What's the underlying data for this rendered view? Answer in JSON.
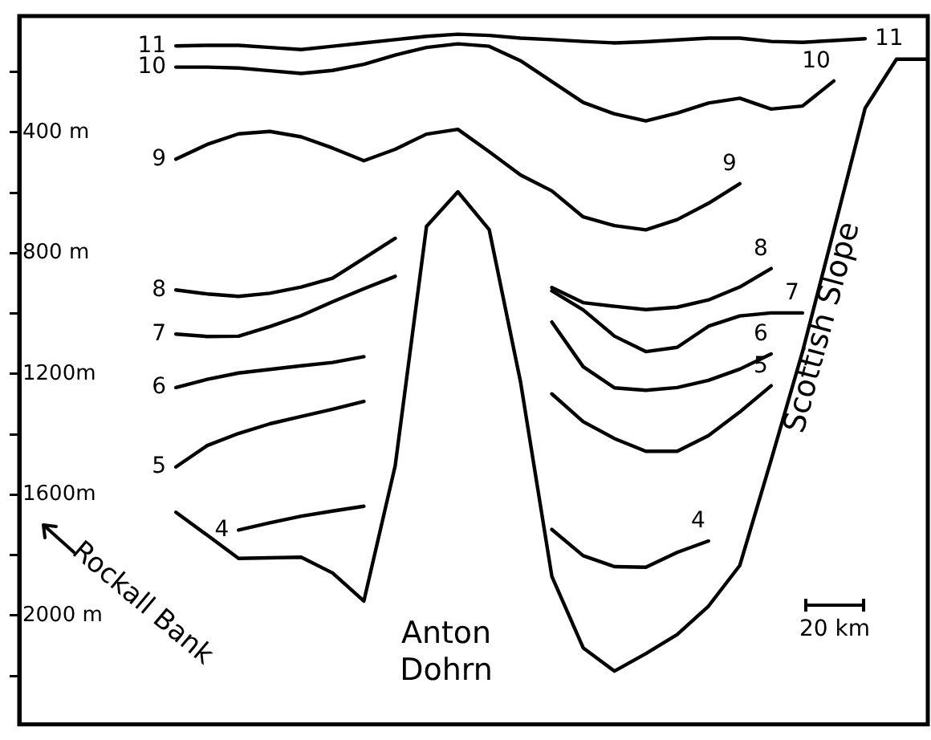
{
  "chart_data": {
    "type": "line",
    "marker": "none",
    "legend": false,
    "grid": false,
    "tick_labels": "y",
    "ylim": [
      2360,
      15
    ],
    "yticks": [
      {
        "value": 200,
        "label": null
      },
      {
        "value": 400,
        "label": "400 m"
      },
      {
        "value": 600,
        "label": null
      },
      {
        "value": 800,
        "label": "800 m"
      },
      {
        "value": 1000,
        "label": null
      },
      {
        "value": 1200,
        "label": "1200m"
      },
      {
        "value": 1400,
        "label": null
      },
      {
        "value": 1600,
        "label": "1600m"
      },
      {
        "value": 1800,
        "label": null
      },
      {
        "value": 2000,
        "label": "2000 m"
      },
      {
        "value": 2200,
        "label": null
      }
    ],
    "categories": [
      null,
      null,
      null,
      null,
      null,
      null,
      null,
      null,
      null,
      null,
      null,
      null,
      null,
      null,
      null,
      null,
      null,
      null,
      null,
      null,
      null,
      null,
      null,
      null,
      null,
      null,
      null,
      null,
      null,
      null
    ],
    "series": [
      {
        "color": "#000000",
        "values": [
          null,
          null,
          null,
          null,
          null,
          1658,
          1734,
          1811,
          1809,
          1807,
          1859,
          1952,
          1504,
          711,
          597,
          722,
          1226,
          1870,
          2107,
          2184,
          2126,
          2063,
          1969,
          1834,
          1485,
          1127,
          725,
          320,
          158,
          158
        ]
      },
      {
        "name": "11",
        "color": "#000000",
        "values": [
          null,
          null,
          null,
          null,
          null,
          114,
          112,
          112,
          119,
          126,
          115,
          104,
          93,
          82,
          75,
          79,
          88,
          93,
          99,
          104,
          100,
          94,
          88,
          88,
          99,
          102,
          96,
          90,
          null,
          null
        ]
      },
      {
        "name": "10",
        "color": "#000000",
        "values": [
          null,
          null,
          null,
          null,
          null,
          184,
          184,
          187,
          196,
          205,
          195,
          175,
          144,
          119,
          107,
          115,
          163,
          232,
          301,
          339,
          362,
          336,
          303,
          287,
          323,
          313,
          230,
          null,
          null,
          null
        ]
      },
      {
        "name": "9",
        "color": "#000000",
        "values": [
          null,
          null,
          null,
          null,
          null,
          489,
          440,
          405,
          397,
          415,
          452,
          494,
          456,
          406,
          390,
          464,
          541,
          594,
          680,
          709,
          723,
          689,
          635,
          570,
          null,
          null,
          null,
          null,
          null,
          null
        ]
      },
      {
        "name": "8",
        "color": "#000000",
        "values": [
          null,
          null,
          null,
          null,
          null,
          922,
          935,
          943,
          933,
          912,
          883,
          817,
          751,
          null,
          null,
          null,
          null,
          914,
          964,
          976,
          987,
          979,
          955,
          912,
          851,
          null,
          null,
          null,
          null,
          null
        ]
      },
      {
        "name": "7",
        "color": "#000000",
        "values": [
          null,
          null,
          null,
          null,
          null,
          1068,
          1076,
          1075,
          1043,
          1007,
          961,
          918,
          877,
          null,
          null,
          null,
          null,
          925,
          988,
          1075,
          1126,
          1112,
          1042,
          1008,
          998,
          998,
          null,
          null,
          null,
          null
        ]
      },
      {
        "name": "6",
        "color": "#000000",
        "values": [
          null,
          null,
          null,
          null,
          null,
          1245,
          1218,
          1197,
          1185,
          1173,
          1162,
          1143,
          null,
          null,
          null,
          null,
          null,
          1028,
          1176,
          1246,
          1254,
          1245,
          1221,
          1184,
          1134,
          null,
          null,
          null,
          null,
          null
        ]
      },
      {
        "name": "5",
        "color": "#000000",
        "values": [
          null,
          null,
          null,
          null,
          null,
          1508,
          1437,
          1397,
          1365,
          1341,
          1317,
          1291,
          null,
          null,
          null,
          null,
          null,
          1266,
          1358,
          1414,
          1456,
          1456,
          1404,
          1326,
          1239,
          null,
          null,
          null,
          null,
          null
        ]
      },
      {
        "name": "4",
        "color": "#000000",
        "values": [
          null,
          null,
          null,
          null,
          null,
          null,
          null,
          1717,
          1693,
          1671,
          1654,
          1638,
          null,
          null,
          null,
          null,
          null,
          1715,
          1802,
          1838,
          1840,
          1791,
          1753,
          null,
          null,
          null,
          null,
          null,
          null,
          null
        ]
      }
    ],
    "annotations": [
      "Rockall Bank",
      "Anton Dohrn",
      "Scottish Slope",
      "20 km"
    ]
  }
}
